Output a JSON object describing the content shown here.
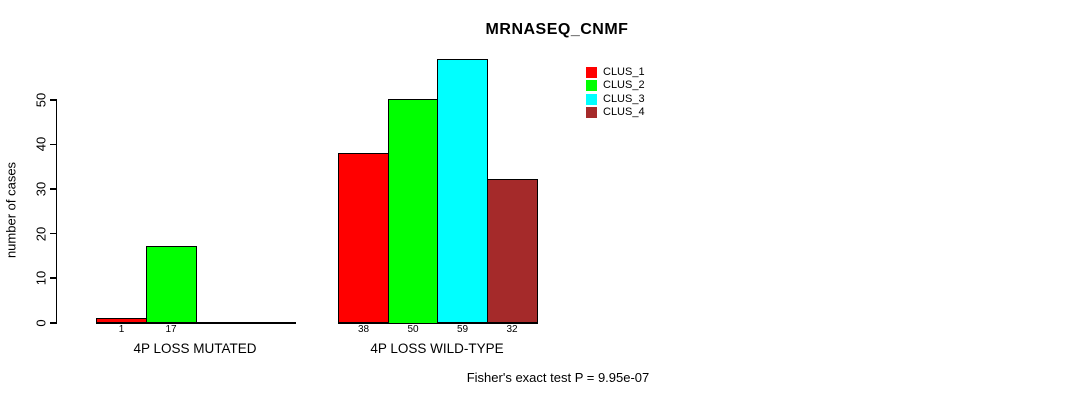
{
  "figure": {
    "title": "MRNASEQ_CNMF",
    "footnote": "Fisher's exact test P = 9.95e-07"
  },
  "chart_data": {
    "type": "bar",
    "title": "MRNASEQ_CNMF",
    "xlabel": "",
    "ylabel": "number of cases",
    "ylim": [
      0,
      59
    ],
    "yticks": [
      0,
      10,
      20,
      30,
      40,
      50
    ],
    "grid": false,
    "legend_position": "top-right",
    "categories": [
      "4P LOSS MUTATED",
      "4P LOSS WILD-TYPE"
    ],
    "series": [
      {
        "name": "CLUS_1",
        "color": "#ff0000",
        "values": [
          1,
          38
        ]
      },
      {
        "name": "CLUS_2",
        "color": "#00ff00",
        "values": [
          17,
          50
        ]
      },
      {
        "name": "CLUS_3",
        "color": "#00ffff",
        "values": [
          0,
          59
        ]
      },
      {
        "name": "CLUS_4",
        "color": "#a52a2a",
        "values": [
          0,
          32
        ]
      }
    ],
    "bar_value_labels": {
      "shown": true,
      "show_zeros": false
    },
    "annotation": "Fisher's exact test P = 9.95e-07"
  },
  "colors": {
    "background": "#ffffff",
    "axis": "#000000",
    "text": "#000000",
    "bar_border": "#000000"
  }
}
